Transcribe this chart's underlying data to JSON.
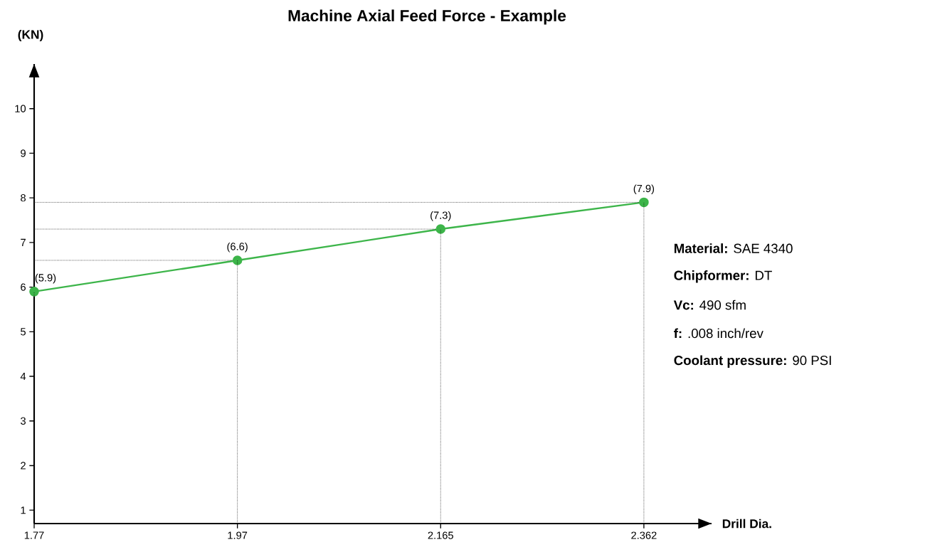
{
  "chart_data": {
    "type": "line",
    "title": "Machine Axial Feed Force - Example",
    "xlabel": "Drill Dia.",
    "ylabel": "(KN)",
    "categories": [
      "1.77",
      "1.97",
      "2.165",
      "2.362"
    ],
    "series": [
      {
        "color": "#3db54a",
        "values": [
          5.9,
          6.6,
          7.3,
          7.9
        ],
        "value_labels": [
          "(5.9)",
          "(6.6)",
          "(7.3)",
          "(7.9)"
        ]
      }
    ],
    "ylim": [
      0.7,
      11
    ],
    "yticks": [
      1,
      2,
      3,
      4,
      5,
      6,
      7,
      8,
      9,
      10
    ],
    "ref_lines": [
      {
        "axis": "y",
        "value": 6.6,
        "color": "#000000",
        "line_style": "dotted"
      },
      {
        "axis": "y",
        "value": 7.3,
        "color": "#000000",
        "line_style": "dotted"
      },
      {
        "axis": "y",
        "value": 7.9,
        "color": "#000000",
        "line_style": "dotted"
      }
    ],
    "marker": "circle",
    "line_style": "solid",
    "grid": false,
    "annotations": [
      "**Material:** SAE 4340",
      "**Chipformer:** DT",
      "**Vc:** 490 sfm",
      "**f:** .008 inch/rev",
      "**Coolant pressure:** 90 PSI"
    ]
  }
}
